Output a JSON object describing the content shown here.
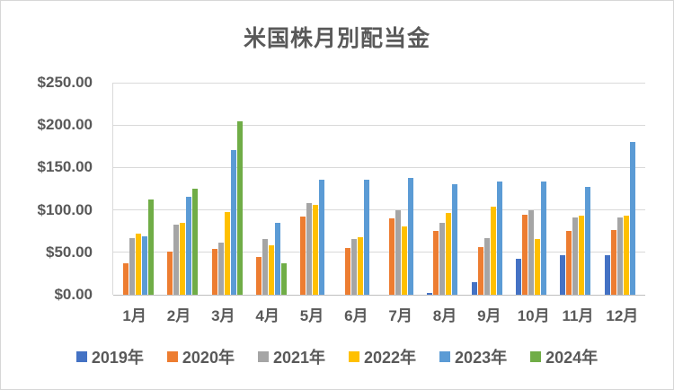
{
  "title": "米国株月別配当金",
  "colors": {
    "text": "#595959",
    "gridline": "#d9d9d9",
    "axis_line": "#bfbfbf",
    "background": "#ffffff"
  },
  "y_axis": {
    "min": 0,
    "max": 250,
    "step": 50,
    "ticks": [
      "$250.00",
      "$200.00",
      "$150.00",
      "$100.00",
      "$50.00",
      "$0.00"
    ]
  },
  "x_axis": {
    "labels": [
      "1月",
      "2月",
      "3月",
      "4月",
      "5月",
      "6月",
      "7月",
      "8月",
      "9月",
      "10月",
      "11月",
      "12月"
    ]
  },
  "legend": {
    "position": "bottom",
    "entries": [
      "2019年",
      "2020年",
      "2021年",
      "2022年",
      "2023年",
      "2024年"
    ]
  },
  "chart_data": {
    "type": "bar",
    "title": "米国株月別配当金",
    "xlabel": "",
    "ylabel": "",
    "ylim": [
      0,
      250
    ],
    "grid": true,
    "legend_position": "bottom",
    "categories": [
      "1月",
      "2月",
      "3月",
      "4月",
      "5月",
      "6月",
      "7月",
      "8月",
      "9月",
      "10月",
      "11月",
      "12月"
    ],
    "series": [
      {
        "name": "2019年",
        "color": "#4472C4",
        "values": [
          0,
          0,
          0,
          0,
          0,
          0,
          0,
          2,
          15,
          42,
          47,
          47
        ]
      },
      {
        "name": "2020年",
        "color": "#ED7D31",
        "values": [
          37,
          51,
          54,
          44,
          92,
          55,
          90,
          75,
          56,
          94,
          75,
          76
        ]
      },
      {
        "name": "2021年",
        "color": "#A5A5A5",
        "values": [
          67,
          83,
          61,
          66,
          108,
          66,
          100,
          85,
          67,
          100,
          91,
          91
        ]
      },
      {
        "name": "2022年",
        "color": "#FFC000",
        "values": [
          72,
          85,
          97,
          58,
          106,
          68,
          80,
          96,
          104,
          66,
          93,
          93
        ]
      },
      {
        "name": "2023年",
        "color": "#5B9BD5",
        "values": [
          69,
          115,
          171,
          85,
          136,
          136,
          138,
          130,
          133,
          133,
          127,
          180
        ]
      },
      {
        "name": "2024年",
        "color": "#70AD47",
        "values": [
          112,
          125,
          204,
          37,
          0,
          0,
          0,
          0,
          0,
          0,
          0,
          0
        ]
      }
    ]
  }
}
